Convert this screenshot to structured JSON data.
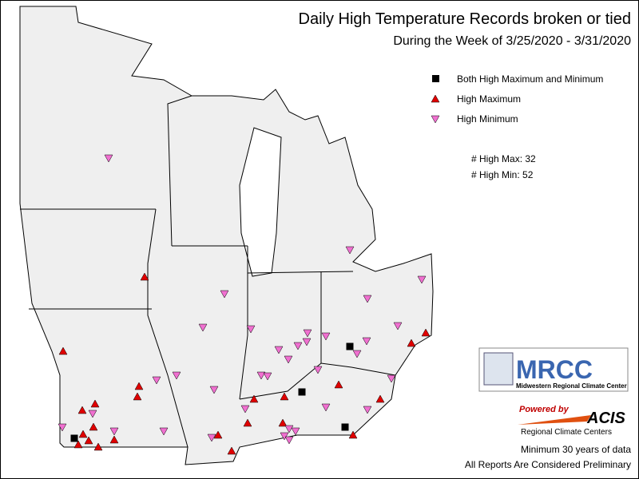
{
  "title": "Daily High Temperature Records broken or tied",
  "subtitle": "During the Week of 3/25/2020 - 3/31/2020",
  "legend": [
    "Both High Maximum and Minimum",
    "High Maximum",
    "High Minimum"
  ],
  "stats": [
    "# High Max: 32",
    "# High Min: 52"
  ],
  "logo": {
    "name": "MRCC",
    "full_name": "Midwestern Regional Climate Center",
    "powered": "Powered by",
    "acis": "ACIS",
    "rcc": "Regional Climate Centers"
  },
  "notes": [
    "Minimum 30 years of data",
    "All Reports Are Considered Preliminary"
  ]
}
